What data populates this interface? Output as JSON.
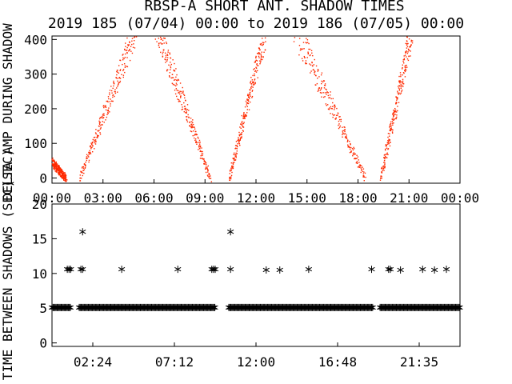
{
  "title_line1": "RBSP-A SHORT ANT. SHADOW TIMES",
  "title_line2": "2019 185 (07/04) 00:00 to 2019 186 (07/05) 00:00",
  "chart_data": [
    {
      "type": "scatter",
      "ylabel": "DELTA AMP DURING SHADOW",
      "ylabel_suffix": "(SEC)",
      "xlim": [
        0,
        24
      ],
      "ylim": [
        -15,
        410
      ],
      "xticks": [
        "00:00",
        "03:00",
        "06:00",
        "09:00",
        "12:00",
        "15:00",
        "18:00",
        "21:00",
        "00:00"
      ],
      "yticks": [
        0,
        100,
        200,
        300,
        400
      ],
      "series_color": "#ff2a00",
      "segments": [
        {
          "x": [
            0.0,
            0.8
          ],
          "y": [
            45,
            0
          ]
        },
        {
          "x": [
            1.6,
            5.0
          ],
          "y": [
            0,
            440
          ]
        },
        {
          "x": [
            6.1,
            9.3
          ],
          "y": [
            440,
            0
          ]
        },
        {
          "x": [
            10.4,
            12.6
          ],
          "y": [
            0,
            440
          ]
        },
        {
          "x": [
            14.2,
            18.4
          ],
          "y": [
            440,
            0
          ]
        },
        {
          "x": [
            19.3,
            21.2
          ],
          "y": [
            0,
            440
          ]
        }
      ]
    },
    {
      "type": "scatter",
      "ylabel": "TIME BETWEEN SHADOWS (SEC)",
      "xlim": [
        0,
        24
      ],
      "ylim": [
        -0.5,
        20
      ],
      "xticks": [
        "02:24",
        "07:12",
        "12:00",
        "16:48",
        "21:35"
      ],
      "yticks": [
        0,
        5,
        10,
        15,
        20
      ],
      "baseline_value": 5.1,
      "baseline_ranges": [
        [
          0.0,
          1.1
        ],
        [
          1.6,
          9.6
        ],
        [
          10.4,
          18.9
        ],
        [
          19.3,
          24.0
        ]
      ],
      "points": [
        {
          "x": 0.9,
          "y": 10.6
        },
        {
          "x": 1.0,
          "y": 10.6
        },
        {
          "x": 1.1,
          "y": 10.6
        },
        {
          "x": 1.7,
          "y": 10.6
        },
        {
          "x": 1.8,
          "y": 10.6
        },
        {
          "x": 1.8,
          "y": 16.0
        },
        {
          "x": 4.1,
          "y": 10.6
        },
        {
          "x": 7.4,
          "y": 10.6
        },
        {
          "x": 9.4,
          "y": 10.6
        },
        {
          "x": 9.5,
          "y": 10.6
        },
        {
          "x": 9.6,
          "y": 10.6
        },
        {
          "x": 10.5,
          "y": 10.6
        },
        {
          "x": 10.5,
          "y": 16.0
        },
        {
          "x": 12.6,
          "y": 10.5
        },
        {
          "x": 13.4,
          "y": 10.5
        },
        {
          "x": 15.1,
          "y": 10.6
        },
        {
          "x": 18.8,
          "y": 10.6
        },
        {
          "x": 19.8,
          "y": 10.6
        },
        {
          "x": 19.9,
          "y": 10.6
        },
        {
          "x": 20.5,
          "y": 10.5
        },
        {
          "x": 21.8,
          "y": 10.6
        },
        {
          "x": 22.5,
          "y": 10.5
        },
        {
          "x": 23.2,
          "y": 10.6
        }
      ]
    }
  ]
}
